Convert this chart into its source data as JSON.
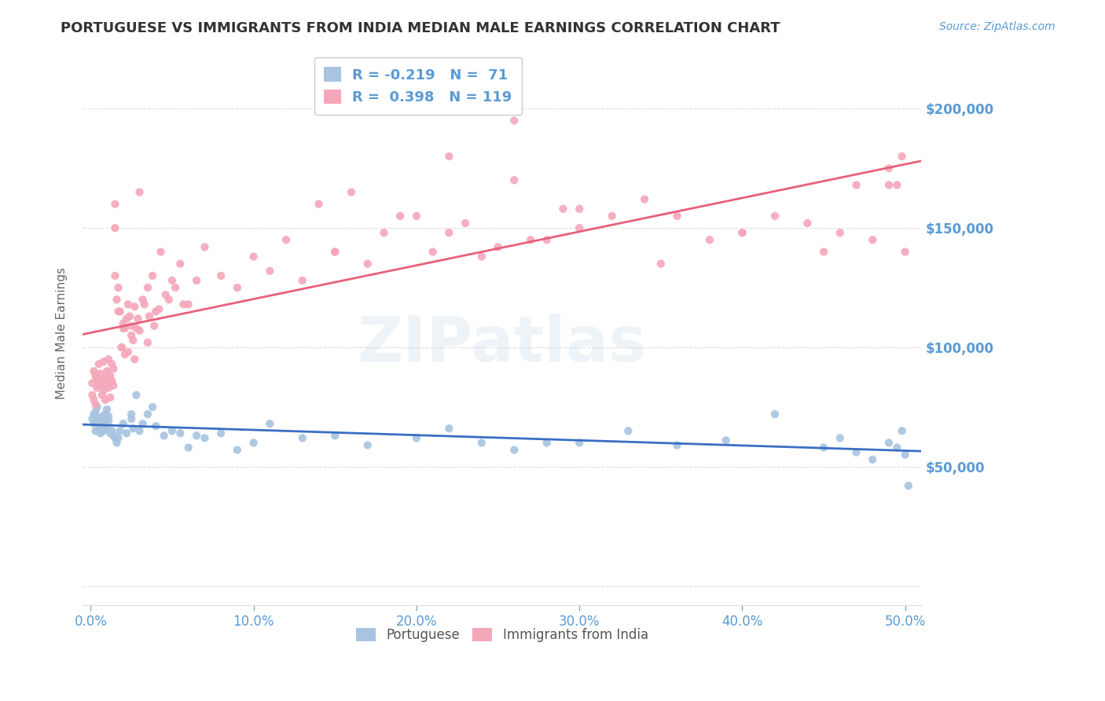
{
  "title": "PORTUGUESE VS IMMIGRANTS FROM INDIA MEDIAN MALE EARNINGS CORRELATION CHART",
  "source": "Source: ZipAtlas.com",
  "ylabel": "Median Male Earnings",
  "xlabel_ticks": [
    "0.0%",
    "10.0%",
    "20.0%",
    "30.0%",
    "40.0%",
    "50.0%"
  ],
  "xlabel_vals": [
    0.0,
    0.1,
    0.2,
    0.3,
    0.4,
    0.5
  ],
  "ytick_vals": [
    0,
    50000,
    100000,
    150000,
    200000
  ],
  "ytick_labels": [
    "",
    "$50,000",
    "$100,000",
    "$150,000",
    "$200,000"
  ],
  "xlim": [
    -0.005,
    0.51
  ],
  "ylim": [
    -8000,
    220000
  ],
  "watermark": "ZIPatlas",
  "blue_R": "-0.219",
  "blue_N": "71",
  "pink_R": "0.398",
  "pink_N": "119",
  "blue_line_color": "#3a6fc4",
  "pink_line_color": "#e8607a",
  "blue_scatter_color": "#a8c4e0",
  "pink_scatter_color": "#f4a7b9",
  "title_color": "#333333",
  "axis_color": "#5b9bd5",
  "grid_color": "#dddddd",
  "blue_x": [
    0.001,
    0.002,
    0.002,
    0.003,
    0.003,
    0.004,
    0.004,
    0.005,
    0.005,
    0.006,
    0.006,
    0.007,
    0.007,
    0.008,
    0.008,
    0.009,
    0.009,
    0.01,
    0.01,
    0.011,
    0.011,
    0.012,
    0.013,
    0.014,
    0.015,
    0.016,
    0.017,
    0.018,
    0.02,
    0.022,
    0.025,
    0.025,
    0.026,
    0.028,
    0.03,
    0.032,
    0.035,
    0.038,
    0.04,
    0.045,
    0.05,
    0.055,
    0.06,
    0.065,
    0.07,
    0.08,
    0.09,
    0.1,
    0.11,
    0.13,
    0.15,
    0.17,
    0.2,
    0.22,
    0.24,
    0.26,
    0.28,
    0.3,
    0.33,
    0.36,
    0.39,
    0.42,
    0.45,
    0.46,
    0.47,
    0.48,
    0.49,
    0.495,
    0.498,
    0.5,
    0.502
  ],
  "blue_y": [
    70000,
    68000,
    72000,
    65000,
    73000,
    69000,
    75000,
    66000,
    70000,
    68000,
    64000,
    71000,
    67000,
    65000,
    70000,
    68000,
    72000,
    66000,
    74000,
    69000,
    71000,
    64000,
    65000,
    63000,
    62000,
    60000,
    62000,
    65000,
    68000,
    64000,
    70000,
    72000,
    66000,
    80000,
    65000,
    68000,
    72000,
    75000,
    67000,
    63000,
    65000,
    64000,
    58000,
    63000,
    62000,
    64000,
    57000,
    60000,
    68000,
    62000,
    63000,
    59000,
    62000,
    66000,
    60000,
    57000,
    60000,
    60000,
    65000,
    59000,
    61000,
    72000,
    58000,
    62000,
    56000,
    53000,
    60000,
    58000,
    65000,
    55000,
    42000
  ],
  "pink_x": [
    0.001,
    0.001,
    0.002,
    0.002,
    0.003,
    0.003,
    0.004,
    0.004,
    0.005,
    0.005,
    0.006,
    0.006,
    0.007,
    0.007,
    0.008,
    0.008,
    0.009,
    0.009,
    0.01,
    0.01,
    0.011,
    0.011,
    0.012,
    0.012,
    0.013,
    0.013,
    0.014,
    0.014,
    0.015,
    0.015,
    0.016,
    0.017,
    0.018,
    0.019,
    0.02,
    0.021,
    0.022,
    0.023,
    0.024,
    0.025,
    0.026,
    0.027,
    0.028,
    0.03,
    0.032,
    0.035,
    0.038,
    0.04,
    0.043,
    0.046,
    0.05,
    0.055,
    0.06,
    0.07,
    0.08,
    0.09,
    0.1,
    0.11,
    0.12,
    0.13,
    0.14,
    0.15,
    0.16,
    0.17,
    0.18,
    0.19,
    0.2,
    0.21,
    0.22,
    0.23,
    0.24,
    0.25,
    0.26,
    0.27,
    0.28,
    0.29,
    0.3,
    0.32,
    0.34,
    0.36,
    0.38,
    0.4,
    0.42,
    0.44,
    0.46,
    0.47,
    0.48,
    0.49,
    0.495,
    0.498,
    0.5,
    0.15,
    0.18,
    0.22,
    0.26,
    0.3,
    0.35,
    0.4,
    0.45,
    0.49,
    0.02,
    0.025,
    0.03,
    0.035,
    0.015,
    0.017,
    0.019,
    0.021,
    0.023,
    0.027,
    0.029,
    0.033,
    0.036,
    0.039,
    0.042,
    0.048,
    0.052,
    0.057,
    0.065
  ],
  "pink_y": [
    80000,
    85000,
    78000,
    90000,
    88000,
    76000,
    83000,
    87000,
    85000,
    93000,
    89000,
    84000,
    86000,
    80000,
    94000,
    82000,
    87000,
    78000,
    90000,
    85000,
    95000,
    83000,
    88000,
    79000,
    93000,
    86000,
    91000,
    84000,
    150000,
    160000,
    120000,
    125000,
    115000,
    100000,
    108000,
    97000,
    112000,
    118000,
    113000,
    109000,
    103000,
    117000,
    108000,
    165000,
    120000,
    125000,
    130000,
    115000,
    140000,
    122000,
    128000,
    135000,
    118000,
    142000,
    130000,
    125000,
    138000,
    132000,
    145000,
    128000,
    160000,
    140000,
    165000,
    135000,
    148000,
    155000,
    155000,
    140000,
    148000,
    152000,
    138000,
    142000,
    170000,
    145000,
    145000,
    158000,
    150000,
    155000,
    162000,
    155000,
    145000,
    148000,
    155000,
    152000,
    148000,
    168000,
    145000,
    175000,
    168000,
    180000,
    140000,
    140000,
    200000,
    180000,
    195000,
    158000,
    135000,
    148000,
    140000,
    168000,
    110000,
    105000,
    107000,
    102000,
    130000,
    115000,
    100000,
    108000,
    98000,
    95000,
    112000,
    118000,
    113000,
    109000,
    116000,
    120000,
    125000,
    118000,
    128000
  ]
}
